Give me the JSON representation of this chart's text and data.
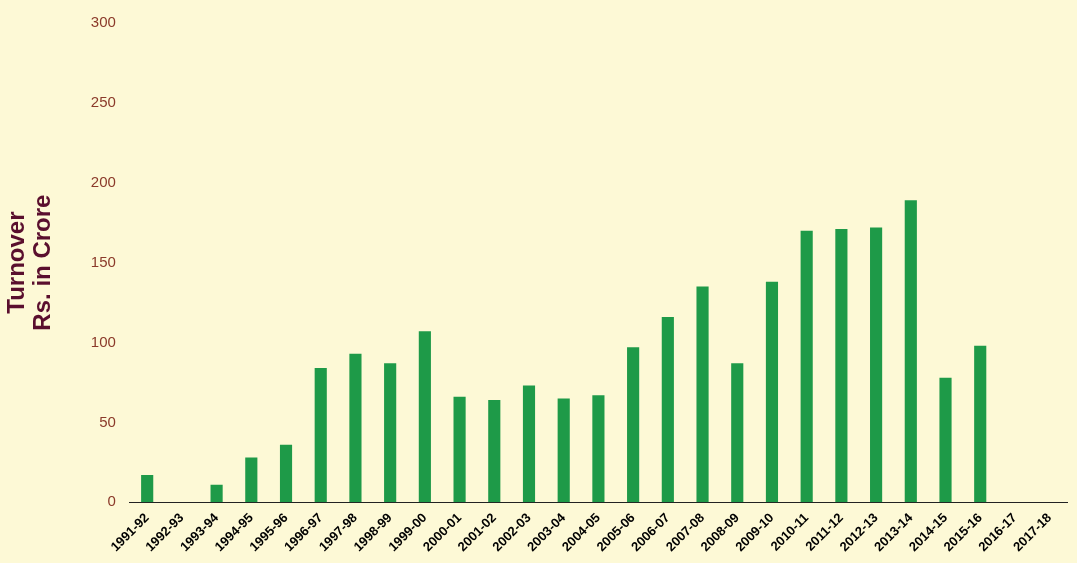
{
  "chart_data": {
    "type": "bar",
    "ylabel": "Turnover\nRs. in Crore",
    "categories": [
      "1991-92",
      "1992-93",
      "1993-94",
      "1994-95",
      "1995-96",
      "1996-97",
      "1997-98",
      "1998-99",
      "1999-00",
      "2000-01",
      "2001-02",
      "2002-03",
      "2003-04",
      "2004-05",
      "2005-06",
      "2006-07",
      "2007-08",
      "2008-09",
      "2009-10",
      "2010-11",
      "2011-12",
      "2012-13",
      "2013-14",
      "2014-15",
      "2015-16",
      "2016-17",
      "2017-18"
    ],
    "values": [
      17,
      null,
      11,
      28,
      36,
      84,
      93,
      87,
      107,
      66,
      64,
      73,
      65,
      67,
      97,
      116,
      135,
      87,
      138,
      170,
      171,
      172,
      189,
      78,
      98,
      null,
      null
    ],
    "color": "#1e9a48",
    "ylim": [
      0,
      300
    ],
    "yticks": [
      0,
      50,
      100,
      150,
      200,
      250,
      300
    ],
    "grid": false,
    "legend": false
  }
}
